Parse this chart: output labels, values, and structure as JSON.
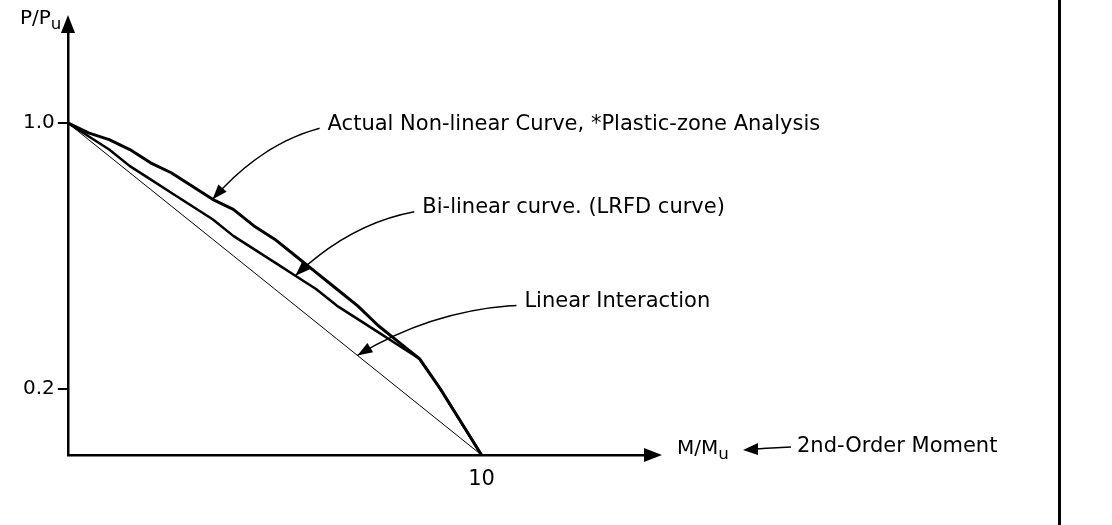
{
  "chart_data": {
    "type": "line",
    "xlabel": "M/M$_{u}$",
    "ylabel": "P/P$_{u}$",
    "categories": [
      null,
      null,
      null,
      null,
      null,
      null,
      null,
      null,
      null,
      null,
      null,
      null,
      null,
      null,
      null,
      null,
      null,
      null,
      null,
      null,
      null,
      null,
      null,
      null,
      null,
      null,
      null,
      null,
      null
    ],
    "ylim": [
      0,
      1.28
    ],
    "yticks": [
      {
        "value": 0.2,
        "label": "0.2"
      },
      {
        "value": 1,
        "label": "1.0"
      }
    ],
    "grid": false,
    "legend": false,
    "marker": "none",
    "line_style": "solid",
    "series": [
      {
        "color": "#000000",
        "values": [
          1,
          0.97,
          0.95,
          0.92,
          0.88,
          0.85,
          0.81,
          0.77,
          0.74,
          0.69,
          0.65,
          0.6,
          0.55,
          0.5,
          0.45,
          0.39,
          0.34,
          0.29,
          0.2,
          0.1,
          0,
          null,
          null,
          null,
          null,
          null,
          null,
          null,
          null
        ]
      },
      {
        "color": "#000000",
        "values": [
          1,
          0.96,
          0.92,
          0.87,
          0.83,
          0.79,
          0.75,
          0.71,
          0.66,
          0.62,
          0.58,
          0.54,
          0.5,
          0.45,
          0.41,
          0.37,
          0.33,
          0.29,
          0.2,
          0.1,
          0,
          null,
          null,
          null,
          null,
          null,
          null,
          null,
          null
        ]
      },
      {
        "color": "#000000",
        "values": [
          1,
          0.95,
          0.9,
          0.85,
          0.8,
          0.75,
          0.7,
          0.65,
          0.6,
          0.55,
          0.5,
          0.45,
          0.4,
          0.35,
          0.3,
          0.25,
          0.2,
          0.15,
          0.1,
          0.05,
          0,
          null,
          null,
          null,
          null,
          null,
          null,
          null,
          null
        ]
      }
    ],
    "annotations": [
      "Actual Non-linear Curve, *Plastic-zone Analysis",
      "Bi-linear curve. (LRFD curve)",
      "Linear Interaction",
      "10",
      "2nd-Order Moment"
    ]
  }
}
